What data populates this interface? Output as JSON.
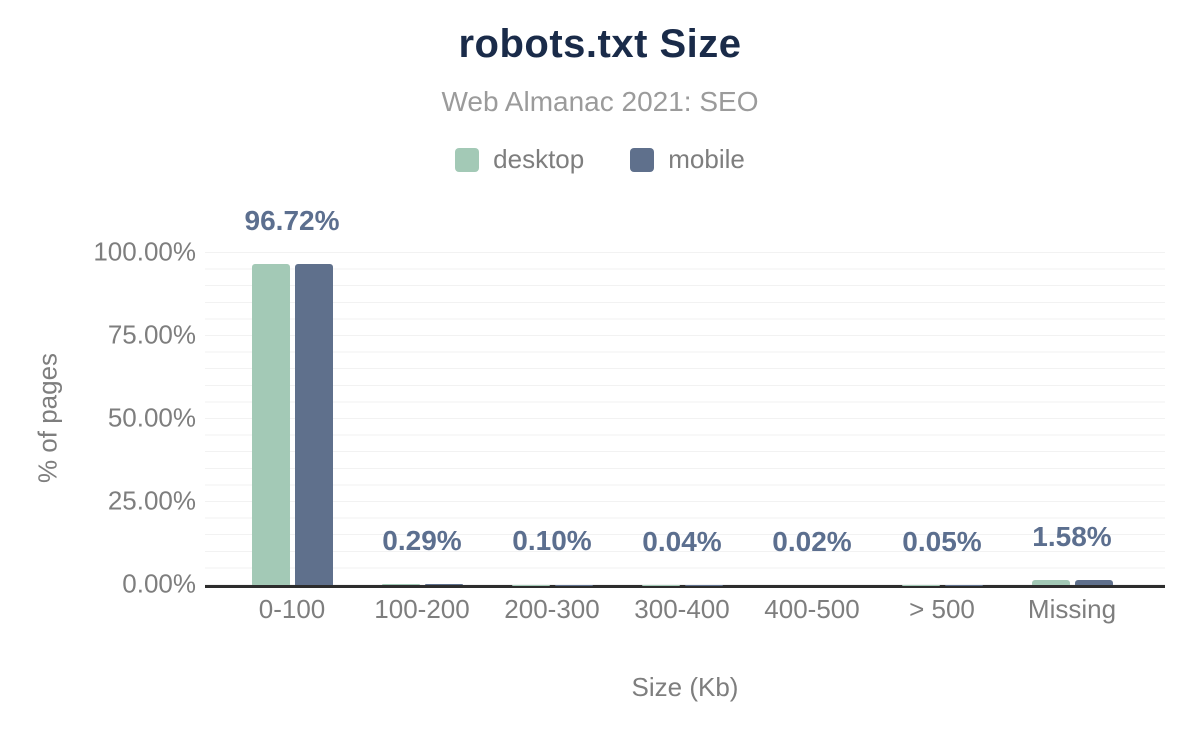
{
  "header": {
    "title": "robots.txt Size",
    "subtitle": "Web Almanac 2021: SEO"
  },
  "colors": {
    "title_text": "#1a2b49",
    "muted_text": "#7e7e7e",
    "subtitle_text": "#9b9b9b",
    "label_text": "#5c6f8f",
    "desktop": "#a3c9b6",
    "mobile": "#5f708c",
    "axis_line": "#2d2d2d",
    "gridline": "#f2f2f2"
  },
  "chart_data": {
    "type": "bar",
    "title": "robots.txt Size",
    "subtitle": "Web Almanac 2021: SEO",
    "categories": [
      "0-100",
      "100-200",
      "200-300",
      "300-400",
      "400-500",
      "> 500",
      "Missing"
    ],
    "series": [
      {
        "name": "desktop",
        "color": "#a3c9b6",
        "values": [
          96.72,
          0.29,
          0.1,
          0.04,
          0.02,
          0.05,
          1.58
        ]
      },
      {
        "name": "mobile",
        "color": "#5f708c",
        "values": [
          96.72,
          0.29,
          0.1,
          0.04,
          0.02,
          0.05,
          1.58
        ]
      }
    ],
    "bar_labels": [
      "96.72%",
      "0.29%",
      "0.10%",
      "0.04%",
      "0.02%",
      "0.05%",
      "1.58%"
    ],
    "xlabel": "Size (Kb)",
    "ylabel": "% of pages",
    "y_ticks": [
      "0.00%",
      "25.00%",
      "50.00%",
      "75.00%",
      "100.00%"
    ],
    "ylim": [
      0,
      100
    ],
    "grid_step_pct": 5,
    "legend_position": "top"
  }
}
